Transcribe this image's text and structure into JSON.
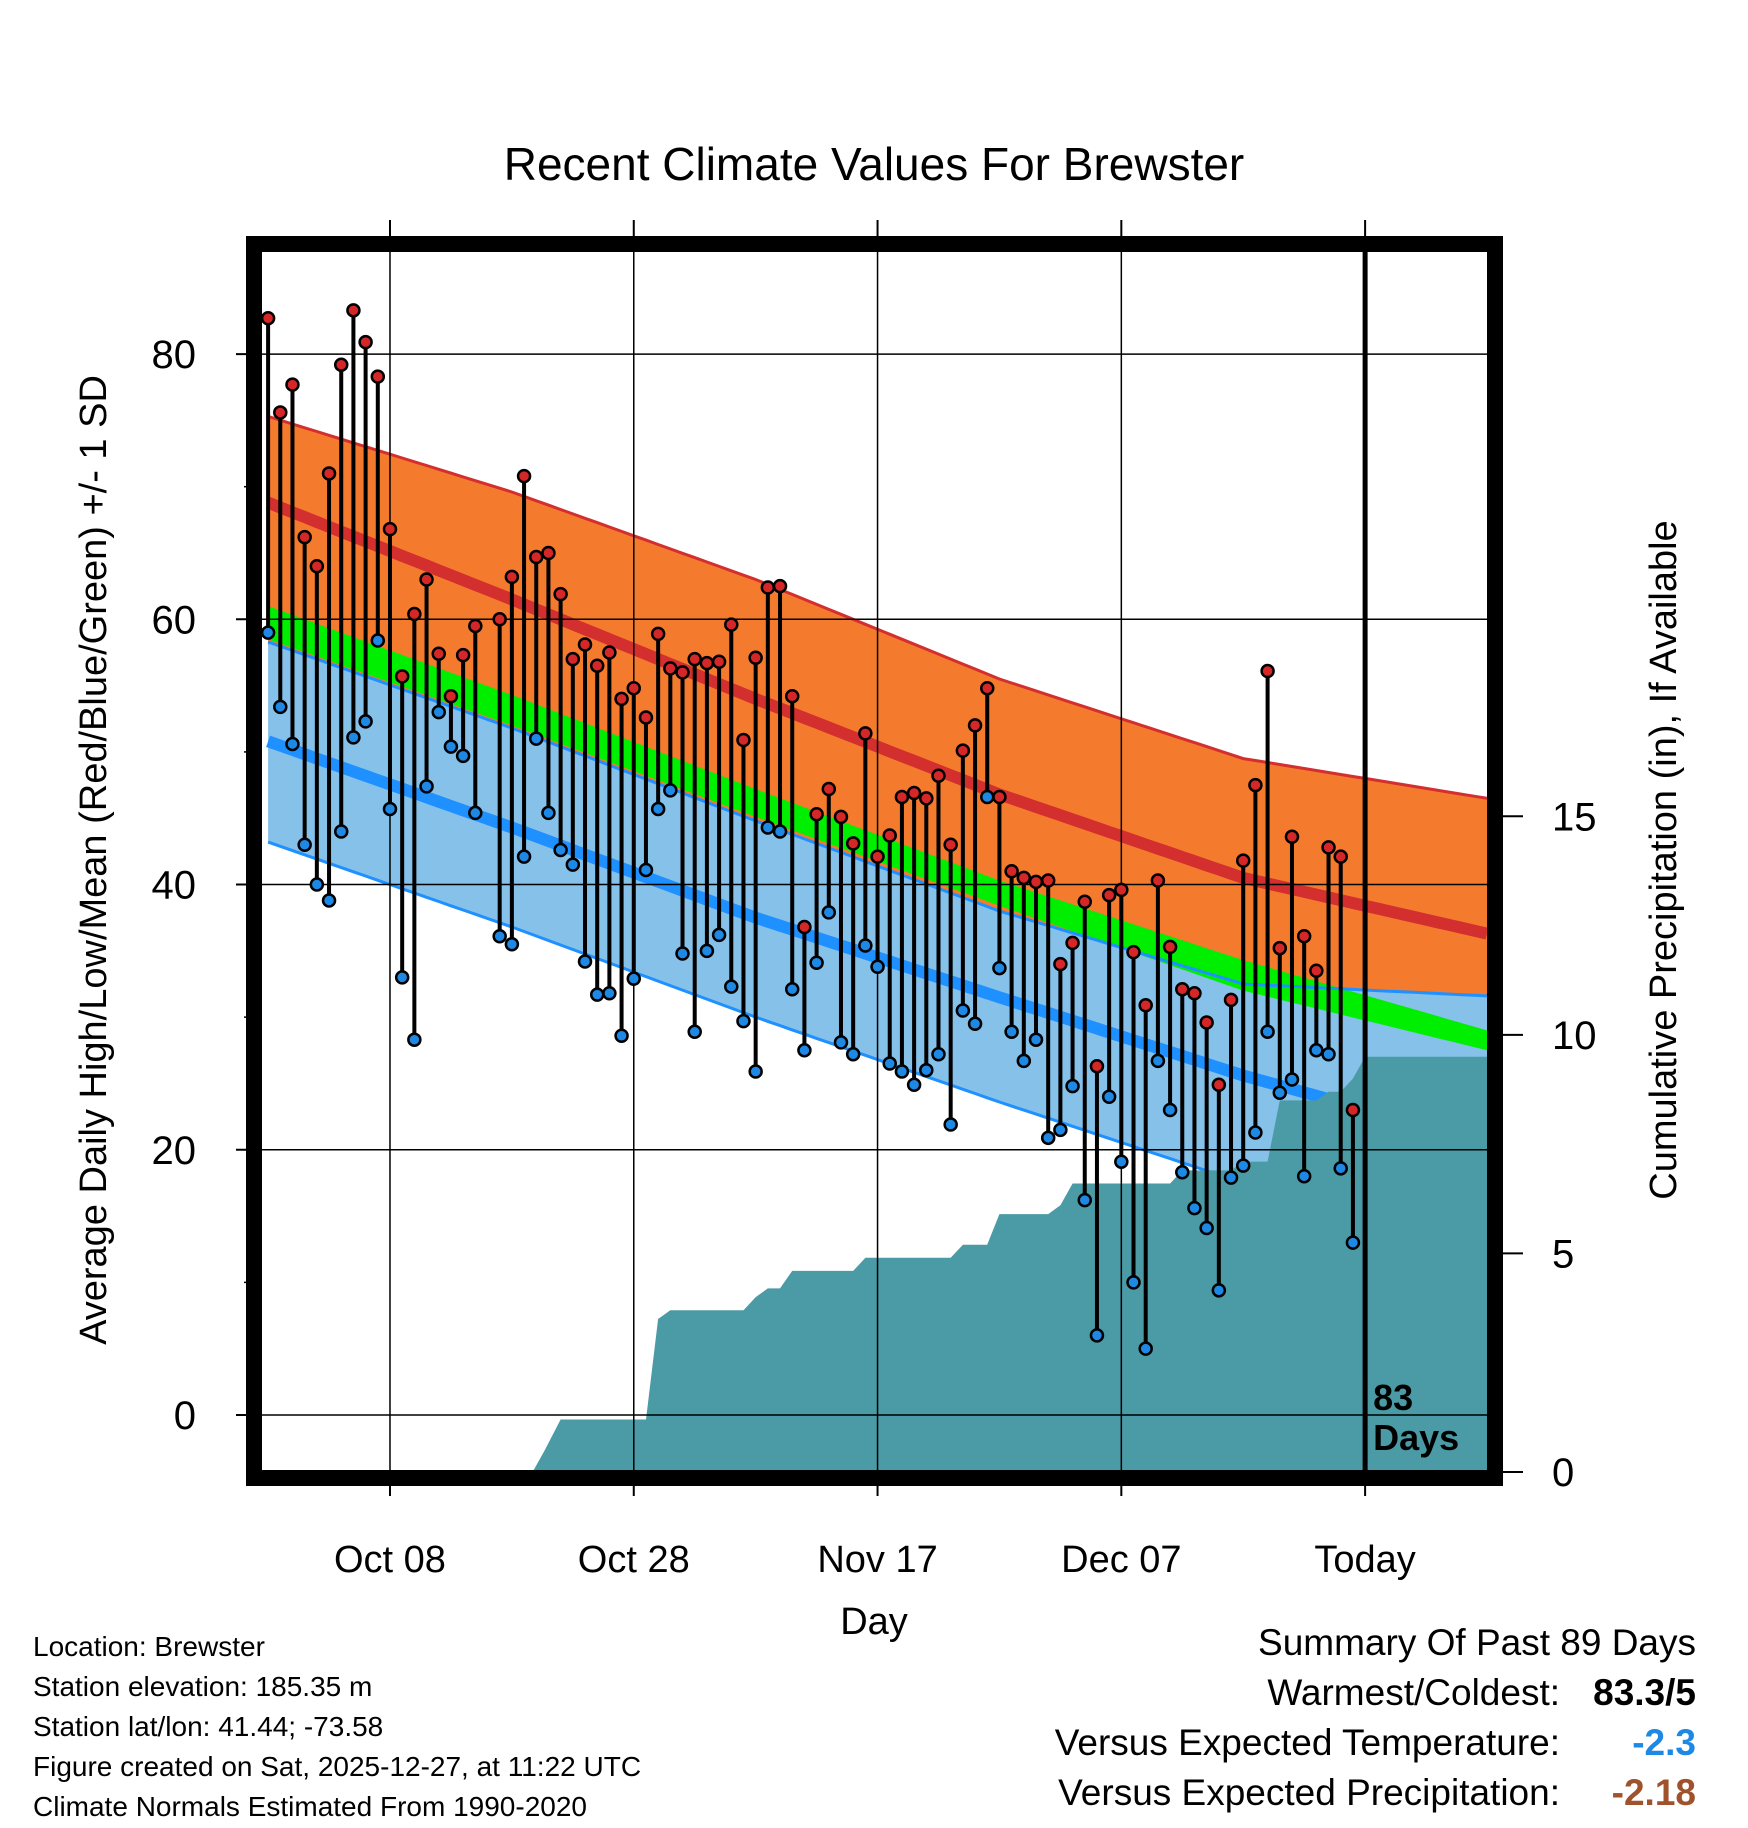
{
  "chart_data": {
    "type": "line",
    "title": "Recent Climate Values For Brewster",
    "xlabel": "Day",
    "ylabel_left": "Average Daily High/Low/Mean (Red/Blue/Green) +/- 1 SD",
    "ylabel_right": "Cumulative Precipitation (in), If Available",
    "ylim": [
      -4.3,
      88
    ],
    "precip_ylim": [
      0,
      28
    ],
    "day_range": [
      -0.5,
      100
    ],
    "x_ticks": [
      {
        "day": 10,
        "label": "Oct 08"
      },
      {
        "day": 30,
        "label": "Oct 28"
      },
      {
        "day": 50,
        "label": "Nov 17"
      },
      {
        "day": 70,
        "label": "Dec 07"
      },
      {
        "day": 90,
        "label": "Today"
      }
    ],
    "y_ticks": [
      0,
      20,
      40,
      60,
      80
    ],
    "precip_ticks": [
      0,
      5,
      10,
      15
    ],
    "today_day": 90,
    "today_label_line1": "83",
    "today_label_line2": "Days",
    "normal_high": [
      [
        0,
        68.8
      ],
      [
        20,
        61.5
      ],
      [
        40,
        54.0
      ],
      [
        60,
        46.8
      ],
      [
        80,
        40.5
      ],
      [
        100,
        36.3
      ]
    ],
    "normal_high_upper": [
      [
        0,
        75.3
      ],
      [
        20,
        69.6
      ],
      [
        40,
        63.0
      ],
      [
        60,
        55.5
      ],
      [
        80,
        49.5
      ],
      [
        100,
        46.5
      ]
    ],
    "normal_low": [
      [
        0,
        50.8
      ],
      [
        20,
        44.3
      ],
      [
        40,
        37.5
      ],
      [
        60,
        31.5
      ],
      [
        80,
        25.6
      ],
      [
        100,
        20.5
      ]
    ],
    "normal_low_lower": [
      [
        0,
        43.2
      ],
      [
        20,
        36.8
      ],
      [
        40,
        30.0
      ],
      [
        60,
        23.6
      ],
      [
        80,
        17.5
      ],
      [
        100,
        12.8
      ]
    ],
    "normal_mean_upper": [
      [
        0,
        61.0
      ],
      [
        20,
        54.3
      ],
      [
        40,
        47.2
      ],
      [
        60,
        40.3
      ],
      [
        80,
        34.3
      ],
      [
        100,
        29.0
      ]
    ],
    "normal_mean_lower": [
      [
        0,
        58.5
      ],
      [
        20,
        52.0
      ],
      [
        40,
        45.1
      ],
      [
        60,
        38.4
      ],
      [
        80,
        32.0
      ],
      [
        100,
        27.5
      ]
    ],
    "normal_low_upper_sd": [
      [
        0,
        58.3
      ],
      [
        20,
        51.8
      ],
      [
        40,
        44.8
      ],
      [
        60,
        38.0
      ],
      [
        80,
        32.5
      ],
      [
        100,
        31.6
      ]
    ],
    "dark_red_lower": [
      [
        0,
        58.0
      ],
      [
        20,
        51.3
      ],
      [
        40,
        44.0
      ],
      [
        60,
        36.8
      ],
      [
        80,
        30.3
      ],
      [
        100,
        26.0
      ]
    ],
    "daily": [
      {
        "day": 0,
        "high": 82.7,
        "low": 59.0
      },
      {
        "day": 1,
        "high": 75.6,
        "low": 53.4
      },
      {
        "day": 2,
        "high": 77.7,
        "low": 50.6
      },
      {
        "day": 3,
        "high": 66.2,
        "low": 43.0
      },
      {
        "day": 4,
        "high": 64.0,
        "low": 40.0
      },
      {
        "day": 5,
        "high": 71.0,
        "low": 38.8
      },
      {
        "day": 6,
        "high": 79.2,
        "low": 44.0
      },
      {
        "day": 7,
        "high": 83.3,
        "low": 51.1
      },
      {
        "day": 8,
        "high": 80.9,
        "low": 52.3
      },
      {
        "day": 9,
        "high": 78.3,
        "low": 58.4
      },
      {
        "day": 10,
        "high": 66.8,
        "low": 45.7
      },
      {
        "day": 11,
        "high": 55.7,
        "low": 33.0
      },
      {
        "day": 12,
        "high": 60.4,
        "low": 28.3
      },
      {
        "day": 13,
        "high": 63.0,
        "low": 47.4
      },
      {
        "day": 14,
        "high": 57.4,
        "low": 53.0
      },
      {
        "day": 15,
        "high": 54.2,
        "low": 50.4
      },
      {
        "day": 16,
        "high": 57.3,
        "low": 49.7
      },
      {
        "day": 17,
        "high": 59.5,
        "low": 45.4
      },
      {
        "day": 19,
        "high": 60.0,
        "low": 36.1
      },
      {
        "day": 20,
        "high": 63.2,
        "low": 35.5
      },
      {
        "day": 21,
        "high": 70.8,
        "low": 42.1
      },
      {
        "day": 22,
        "high": 64.7,
        "low": 51.0
      },
      {
        "day": 23,
        "high": 65.0,
        "low": 45.4
      },
      {
        "day": 24,
        "high": 61.9,
        "low": 42.6
      },
      {
        "day": 25,
        "high": 57.0,
        "low": 41.5
      },
      {
        "day": 26,
        "high": 58.1,
        "low": 34.2
      },
      {
        "day": 27,
        "high": 56.5,
        "low": 31.7
      },
      {
        "day": 28,
        "high": 57.5,
        "low": 31.8
      },
      {
        "day": 29,
        "high": 54.0,
        "low": 28.6
      },
      {
        "day": 30,
        "high": 54.8,
        "low": 32.9
      },
      {
        "day": 31,
        "high": 52.6,
        "low": 41.1
      },
      {
        "day": 32,
        "high": 58.9,
        "low": 45.7
      },
      {
        "day": 33,
        "high": 56.3,
        "low": 47.1
      },
      {
        "day": 34,
        "high": 56.0,
        "low": 34.8
      },
      {
        "day": 35,
        "high": 57.0,
        "low": 28.9
      },
      {
        "day": 36,
        "high": 56.7,
        "low": 35.0
      },
      {
        "day": 37,
        "high": 56.8,
        "low": 36.2
      },
      {
        "day": 38,
        "high": 59.6,
        "low": 32.3
      },
      {
        "day": 39,
        "high": 50.9,
        "low": 29.7
      },
      {
        "day": 40,
        "high": 57.1,
        "low": 25.9
      },
      {
        "day": 41,
        "high": 62.4,
        "low": 44.3
      },
      {
        "day": 42,
        "high": 62.5,
        "low": 44.0
      },
      {
        "day": 43,
        "high": 54.2,
        "low": 32.1
      },
      {
        "day": 44,
        "high": 36.8,
        "low": 27.5
      },
      {
        "day": 45,
        "high": 45.3,
        "low": 34.1
      },
      {
        "day": 46,
        "high": 47.2,
        "low": 37.9
      },
      {
        "day": 47,
        "high": 45.1,
        "low": 28.1
      },
      {
        "day": 48,
        "high": 43.1,
        "low": 27.2
      },
      {
        "day": 49,
        "high": 51.4,
        "low": 35.4
      },
      {
        "day": 50,
        "high": 42.1,
        "low": 33.8
      },
      {
        "day": 51,
        "high": 43.7,
        "low": 26.5
      },
      {
        "day": 52,
        "high": 46.6,
        "low": 25.9
      },
      {
        "day": 53,
        "high": 46.9,
        "low": 24.9
      },
      {
        "day": 54,
        "high": 46.5,
        "low": 26.0
      },
      {
        "day": 55,
        "high": 48.2,
        "low": 27.2
      },
      {
        "day": 56,
        "high": 43.0,
        "low": 21.9
      },
      {
        "day": 57,
        "high": 50.1,
        "low": 30.5
      },
      {
        "day": 58,
        "high": 52.0,
        "low": 29.5
      },
      {
        "day": 59,
        "high": 54.8,
        "low": 46.6
      },
      {
        "day": 60,
        "high": 46.6,
        "low": 33.7
      },
      {
        "day": 61,
        "high": 41.0,
        "low": 28.9
      },
      {
        "day": 62,
        "high": 40.5,
        "low": 26.7
      },
      {
        "day": 63,
        "high": 40.2,
        "low": 28.3
      },
      {
        "day": 64,
        "high": 40.3,
        "low": 20.9
      },
      {
        "day": 65,
        "high": 34.0,
        "low": 21.5
      },
      {
        "day": 66,
        "high": 35.6,
        "low": 24.8
      },
      {
        "day": 67,
        "high": 38.7,
        "low": 16.2
      },
      {
        "day": 68,
        "high": 26.3,
        "low": 6.0
      },
      {
        "day": 69,
        "high": 39.2,
        "low": 24.0
      },
      {
        "day": 70,
        "high": 39.6,
        "low": 19.1
      },
      {
        "day": 71,
        "high": 34.9,
        "low": 10.0
      },
      {
        "day": 72,
        "high": 30.9,
        "low": 5.0
      },
      {
        "day": 73,
        "high": 40.3,
        "low": 26.7
      },
      {
        "day": 74,
        "high": 35.3,
        "low": 23.0
      },
      {
        "day": 75,
        "high": 32.1,
        "low": 18.3
      },
      {
        "day": 76,
        "high": 31.8,
        "low": 15.6
      },
      {
        "day": 77,
        "high": 29.6,
        "low": 14.1
      },
      {
        "day": 78,
        "high": 24.9,
        "low": 9.4
      },
      {
        "day": 79,
        "high": 31.3,
        "low": 17.9
      },
      {
        "day": 80,
        "high": 41.8,
        "low": 18.8
      },
      {
        "day": 81,
        "high": 47.5,
        "low": 21.3
      },
      {
        "day": 82,
        "high": 56.1,
        "low": 28.9
      },
      {
        "day": 83,
        "high": 35.2,
        "low": 24.3
      },
      {
        "day": 84,
        "high": 43.6,
        "low": 25.3
      },
      {
        "day": 85,
        "high": 36.1,
        "low": 18.0
      },
      {
        "day": 86,
        "high": 33.5,
        "low": 27.5
      },
      {
        "day": 87,
        "high": 42.8,
        "low": 27.2
      },
      {
        "day": 88,
        "high": 42.1,
        "low": 18.6
      },
      {
        "day": 89,
        "high": 23.0,
        "low": 13.0
      }
    ],
    "precip": [
      [
        0,
        0
      ],
      [
        21.7,
        0
      ],
      [
        22.7,
        0.5
      ],
      [
        24,
        1.2
      ],
      [
        31,
        1.2
      ],
      [
        32,
        3.5
      ],
      [
        33,
        3.7
      ],
      [
        39,
        3.7
      ],
      [
        40,
        4.0
      ],
      [
        41,
        4.2
      ],
      [
        42,
        4.2
      ],
      [
        43,
        4.6
      ],
      [
        48,
        4.6
      ],
      [
        49,
        4.9
      ],
      [
        56,
        4.9
      ],
      [
        57,
        5.2
      ],
      [
        59,
        5.2
      ],
      [
        60,
        5.9
      ],
      [
        64,
        5.9
      ],
      [
        65,
        6.1
      ],
      [
        66,
        6.6
      ],
      [
        74,
        6.6
      ],
      [
        75,
        6.9
      ],
      [
        79,
        6.9
      ],
      [
        80,
        7.1
      ],
      [
        82,
        7.1
      ],
      [
        83,
        8.5
      ],
      [
        86,
        8.5
      ],
      [
        87,
        8.7
      ],
      [
        88,
        8.7
      ],
      [
        89,
        9.0
      ],
      [
        90,
        9.5
      ],
      [
        100,
        9.5
      ]
    ]
  },
  "footer": {
    "location": "Location: Brewster",
    "elevation": "Station elevation: 185.35 m",
    "latlon": "Station lat/lon: 41.44; -73.58",
    "created": "Figure created on Sat, 2025-12-27, at 11:22 UTC",
    "normals": "Climate Normals Estimated From 1990-2020"
  },
  "summary": {
    "title": "Summary Of Past 89 Days",
    "warmest_label": "Warmest/Coldest:",
    "warmest_value": "83.3/5",
    "temp_label": "Versus Expected Temperature:",
    "temp_value": "-2.3",
    "precip_label": "Versus Expected Precipitation:",
    "precip_value": "-2.18",
    "colors": {
      "temp": "#1e88e5",
      "precip": "#a0522d"
    }
  }
}
